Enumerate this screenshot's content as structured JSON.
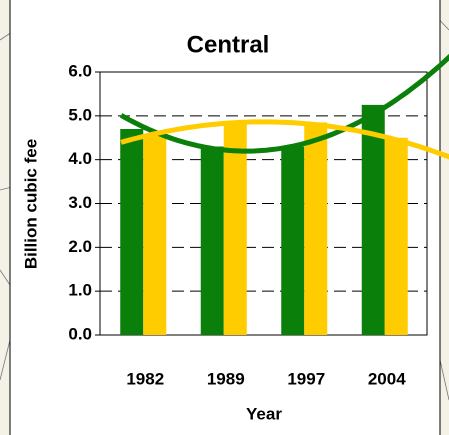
{
  "chart_data": {
    "type": "bar",
    "title": "Central",
    "x_label": "Year",
    "y_label": "Billion cubic fee",
    "categories": [
      "1982",
      "1989",
      "1997",
      "2004"
    ],
    "series": [
      {
        "name": "Green",
        "color": "#0a7f0a",
        "values": [
          4.7,
          4.3,
          4.3,
          5.25
        ]
      },
      {
        "name": "Yellow",
        "color": "#ffcc00",
        "values": [
          4.55,
          4.8,
          4.85,
          4.5
        ]
      }
    ],
    "ylim": [
      0,
      6
    ],
    "yticks": [
      {
        "value": 0,
        "label": "0.0"
      },
      {
        "value": 1,
        "label": "1.0"
      },
      {
        "value": 2,
        "label": "2.0"
      },
      {
        "value": 3,
        "label": "3.0"
      },
      {
        "value": 4,
        "label": "4.0"
      },
      {
        "value": 5,
        "label": "5.0"
      },
      {
        "value": 6,
        "label": "6.0"
      }
    ],
    "grid": true,
    "trendline": "polynomial"
  }
}
